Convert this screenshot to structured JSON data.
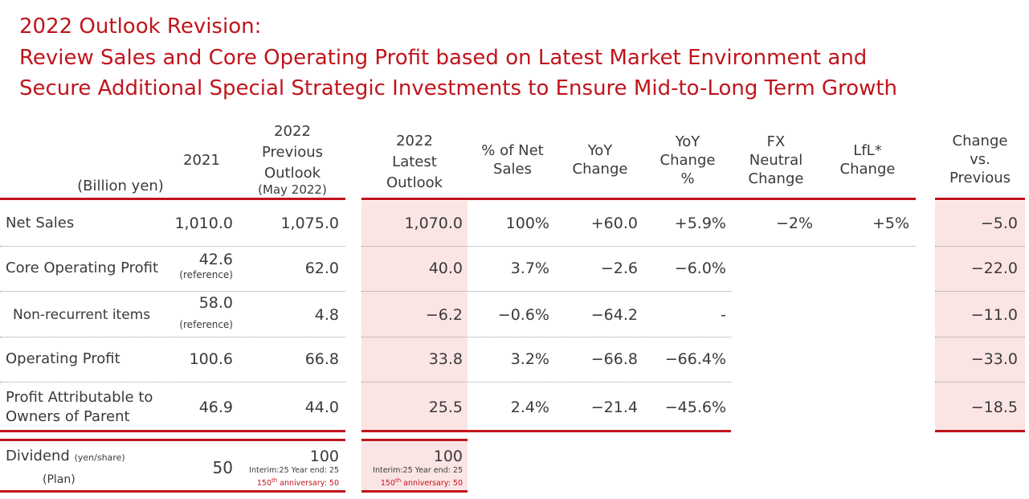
{
  "title": {
    "line1": "2022 Outlook Revision:",
    "line2": "Review Sales and Core Operating Profit based on Latest Market Environment and",
    "line3": "Secure Additional Special Strategic Investments to Ensure Mid-to-Long Term Growth"
  },
  "colors": {
    "accent": "#c0141c",
    "shade": "#fbe4e4"
  },
  "table": {
    "unit": "(Billion yen)",
    "headers": {
      "y2021": "2021",
      "prev": [
        "2022",
        "Previous",
        "Outlook",
        "(May 2022)"
      ],
      "latest": [
        "2022",
        "Latest",
        "Outlook"
      ],
      "pct": [
        "% of Net",
        "Sales"
      ],
      "yoy": [
        "YoY",
        "Change"
      ],
      "yoypct": [
        "YoY",
        "Change",
        "%"
      ],
      "fx": [
        "FX",
        "Neutral",
        "Change"
      ],
      "lfl": [
        "LfL*",
        "Change"
      ],
      "chg": [
        "Change",
        "vs.",
        "Previous"
      ]
    },
    "rows": [
      {
        "label": "Net Sales",
        "y2021": "1,010.0",
        "y2021_note": "",
        "prev": "1,075.0",
        "latest": "1,070.0",
        "pct": "100%",
        "yoy": "+60.0",
        "yoypct": "+5.9%",
        "fx": "−2%",
        "lfl": "+5%",
        "chg": "−5.0"
      },
      {
        "label": "Core Operating Profit",
        "y2021": "42.6",
        "y2021_note": "(reference)",
        "prev": "62.0",
        "latest": "40.0",
        "pct": "3.7%",
        "yoy": "−2.6",
        "yoypct": "−6.0%",
        "fx": "",
        "lfl": "",
        "chg": "−22.0"
      },
      {
        "label": "Non-recurrent items",
        "y2021": "58.0",
        "y2021_note": "(reference)",
        "prev": "4.8",
        "latest": "−6.2",
        "pct": "−0.6%",
        "yoy": "−64.2",
        "yoypct": "-",
        "fx": "",
        "lfl": "",
        "chg": "−11.0"
      },
      {
        "label": "Operating Profit",
        "y2021": "100.6",
        "y2021_note": "",
        "prev": "66.8",
        "latest": "33.8",
        "pct": "3.2%",
        "yoy": "−66.8",
        "yoypct": "−66.4%",
        "fx": "",
        "lfl": "",
        "chg": "−33.0"
      },
      {
        "label": "Profit Attributable to",
        "label2": "Owners of Parent",
        "y2021": "46.9",
        "y2021_note": "",
        "prev": "44.0",
        "latest": "25.5",
        "pct": "2.4%",
        "yoy": "−21.4",
        "yoypct": "−45.6%",
        "fx": "",
        "lfl": "",
        "chg": "−18.5"
      }
    ],
    "dividend": {
      "label": "Dividend",
      "unit": "(yen/share)",
      "plan": "(Plan)",
      "y2021": "50",
      "prev": {
        "value": "100",
        "note1": "Interim:25 Year end: 25",
        "note2_pre": "150",
        "note2_sup": "th",
        "note2_post": " anniversary: 50"
      },
      "latest": {
        "value": "100",
        "note1": "Interim:25 Year end: 25",
        "note2_pre": "150",
        "note2_sup": "th",
        "note2_post": " anniversary: 50"
      }
    }
  }
}
